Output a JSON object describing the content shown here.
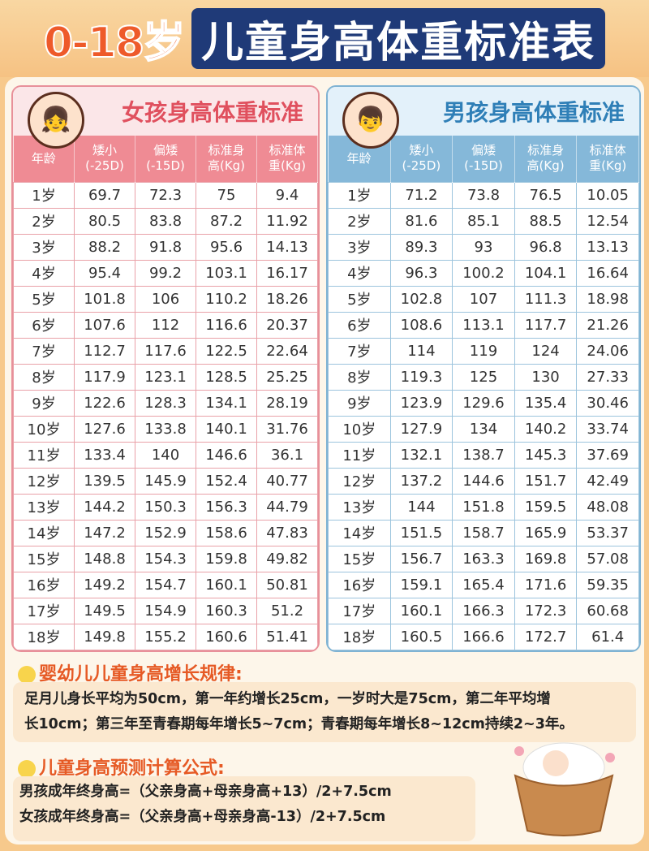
{
  "title": {
    "part1": "0-18岁",
    "part2": "儿童身高体重标准表"
  },
  "girl": {
    "title": "女孩身高体重标准",
    "headers": [
      "年龄",
      "矮小\n(-25D)",
      "偏矮\n(-15D)",
      "标准身\n高(Kg)",
      "标准体\n重(Kg)"
    ],
    "rows": [
      [
        "1岁",
        "69.7",
        "72.3",
        "75",
        "9.4"
      ],
      [
        "2岁",
        "80.5",
        "83.8",
        "87.2",
        "11.92"
      ],
      [
        "3岁",
        "88.2",
        "91.8",
        "95.6",
        "14.13"
      ],
      [
        "4岁",
        "95.4",
        "99.2",
        "103.1",
        "16.17"
      ],
      [
        "5岁",
        "101.8",
        "106",
        "110.2",
        "18.26"
      ],
      [
        "6岁",
        "107.6",
        "112",
        "116.6",
        "20.37"
      ],
      [
        "7岁",
        "112.7",
        "117.6",
        "122.5",
        "22.64"
      ],
      [
        "8岁",
        "117.9",
        "123.1",
        "128.5",
        "25.25"
      ],
      [
        "9岁",
        "122.6",
        "128.3",
        "134.1",
        "28.19"
      ],
      [
        "10岁",
        "127.6",
        "133.8",
        "140.1",
        "31.76"
      ],
      [
        "11岁",
        "133.4",
        "140",
        "146.6",
        "36.1"
      ],
      [
        "12岁",
        "139.5",
        "145.9",
        "152.4",
        "40.77"
      ],
      [
        "13岁",
        "144.2",
        "150.3",
        "156.3",
        "44.79"
      ],
      [
        "14岁",
        "147.2",
        "152.9",
        "158.6",
        "47.83"
      ],
      [
        "15岁",
        "148.8",
        "154.3",
        "159.8",
        "49.82"
      ],
      [
        "16岁",
        "149.2",
        "154.7",
        "160.1",
        "50.81"
      ],
      [
        "17岁",
        "149.5",
        "154.9",
        "160.3",
        "51.2"
      ],
      [
        "18岁",
        "149.8",
        "155.2",
        "160.6",
        "51.41"
      ]
    ]
  },
  "boy": {
    "title": "男孩身高体重标准",
    "headers": [
      "年龄",
      "矮小\n(-25D)",
      "偏矮\n(-15D)",
      "标准身\n高(Kg)",
      "标准体\n重(Kg)"
    ],
    "rows": [
      [
        "1岁",
        "71.2",
        "73.8",
        "76.5",
        "10.05"
      ],
      [
        "2岁",
        "81.6",
        "85.1",
        "88.5",
        "12.54"
      ],
      [
        "3岁",
        "89.3",
        "93",
        "96.8",
        "13.13"
      ],
      [
        "4岁",
        "96.3",
        "100.2",
        "104.1",
        "16.64"
      ],
      [
        "5岁",
        "102.8",
        "107",
        "111.3",
        "18.98"
      ],
      [
        "6岁",
        "108.6",
        "113.1",
        "117.7",
        "21.26"
      ],
      [
        "7岁",
        "114",
        "119",
        "124",
        "24.06"
      ],
      [
        "8岁",
        "119.3",
        "125",
        "130",
        "27.33"
      ],
      [
        "9岁",
        "123.9",
        "129.6",
        "135.4",
        "30.46"
      ],
      [
        "10岁",
        "127.9",
        "134",
        "140.2",
        "33.74"
      ],
      [
        "11岁",
        "132.1",
        "138.7",
        "145.3",
        "37.69"
      ],
      [
        "12岁",
        "137.2",
        "144.6",
        "151.7",
        "42.49"
      ],
      [
        "13岁",
        "144",
        "151.8",
        "159.5",
        "48.08"
      ],
      [
        "14岁",
        "151.5",
        "158.7",
        "165.9",
        "53.37"
      ],
      [
        "15岁",
        "156.7",
        "163.3",
        "169.8",
        "57.08"
      ],
      [
        "16岁",
        "159.1",
        "165.4",
        "171.6",
        "59.35"
      ],
      [
        "17岁",
        "160.1",
        "166.3",
        "172.3",
        "60.68"
      ],
      [
        "18岁",
        "160.5",
        "166.6",
        "172.7",
        "61.4"
      ]
    ]
  },
  "growth": {
    "title": "婴幼儿儿童身高增长规律:",
    "line1": "足月儿身长平均为50cm，第一年约增长25cm，一岁时大是75cm，第二年平均增",
    "line2": "长10cm；第三年至青春期每年增长5~7cm；青春期每年增长8~12cm持续2~3年。"
  },
  "formula": {
    "title": "儿童身高预测计算公式:",
    "boy": "男孩成年终身高=（父亲身高+母亲身高+13）/2+7.5cm",
    "girl": "女孩成年终身高=（父亲身高+母亲身高-13）/2+7.5cm"
  }
}
